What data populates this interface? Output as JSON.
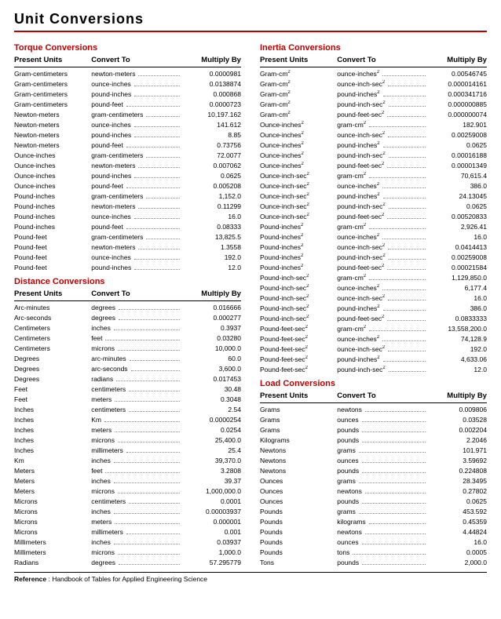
{
  "title": "Unit  Conversions",
  "reference_label": "Reference",
  "reference_text": " : Handbook of Tables for Applied Engineering Science",
  "headers": {
    "c1": "Present Units",
    "c2": "Convert To",
    "c3": "Multiply By"
  },
  "colors": {
    "accent": "#c00000",
    "text": "#000000",
    "bg": "#ffffff"
  },
  "left": [
    {
      "title": "Torque Conversions",
      "rows": [
        [
          "Gram-centimeters",
          "newton-meters",
          "0.0000981"
        ],
        [
          "Gram-centimeters",
          "ounce-inches",
          "0.0138874"
        ],
        [
          "Gram-centimeters",
          "pound-inches",
          "0.000868"
        ],
        [
          "Gram-centimeters",
          "pound-feet",
          "0.0000723"
        ],
        [
          "Newton-meters",
          "gram-centimeters",
          "10,197.162"
        ],
        [
          "Newton-meters",
          "ounce-inches",
          "141.612"
        ],
        [
          "Newton-meters",
          "pound-inches",
          "8.85"
        ],
        [
          "Newton-meters",
          "pound-feet",
          "0.73756"
        ],
        [
          "Ounce-inches",
          "gram-centimeters",
          "72.0077"
        ],
        [
          "Ounce-inches",
          "newton-meters",
          "0.007062"
        ],
        [
          "Ounce-inches",
          "pound-inches",
          "0.0625"
        ],
        [
          "Ounce-inches",
          "pound-feet",
          "0.005208"
        ],
        [
          "Pound-inches",
          "gram-centimeters",
          "1,152.0"
        ],
        [
          "Pound-inches",
          "newton-meters",
          "0.11299"
        ],
        [
          "Pound-inches",
          "ounce-inches",
          "16.0"
        ],
        [
          "Pound-inches",
          "pound-feet",
          "0.08333"
        ],
        [
          "Pound-feet",
          "gram-centimeters",
          "13,825.5"
        ],
        [
          "Pound-feet",
          "newton-meters",
          "1.3558"
        ],
        [
          "Pound-feet",
          "ounce-inches",
          "192.0"
        ],
        [
          "Pound-feet",
          "pound-inches",
          "12.0"
        ]
      ]
    },
    {
      "title": "Distance Conversions",
      "rows": [
        [
          "Arc-minutes",
          "degrees",
          "0.016666"
        ],
        [
          "Arc-seconds",
          "degrees",
          "0.000277"
        ],
        [
          "Centimeters",
          "inches",
          "0.3937"
        ],
        [
          "Centimeters",
          "feet",
          "0.03280"
        ],
        [
          "Centimeters",
          "microns",
          "10,000.0"
        ],
        [
          "Degrees",
          "arc-minutes",
          "60.0"
        ],
        [
          "Degrees",
          "arc-seconds",
          "3,600.0"
        ],
        [
          "Degrees",
          "radians",
          "0.017453"
        ],
        [
          "Feet",
          "centimeters",
          "30.48"
        ],
        [
          "Feet",
          "meters",
          "0.3048"
        ],
        [
          "Inches",
          "centimeters",
          "2.54"
        ],
        [
          "Inches",
          "Km",
          "0.0000254"
        ],
        [
          "Inches",
          "meters",
          "0.0254"
        ],
        [
          "Inches",
          "microns",
          "25,400.0"
        ],
        [
          "Inches",
          "millimeters",
          "25.4"
        ],
        [
          "Km",
          "inches",
          "39,370.0"
        ],
        [
          "Meters",
          "feet",
          "3.2808"
        ],
        [
          "Meters",
          "inches",
          "39.37"
        ],
        [
          "Meters",
          "microns",
          "1,000,000.0"
        ],
        [
          "Microns",
          "centimeters",
          "0.0001"
        ],
        [
          "Microns",
          "inches",
          "0.00003937"
        ],
        [
          "Microns",
          "meters",
          "0.000001"
        ],
        [
          "Microns",
          "millimeters",
          "0.001"
        ],
        [
          "Millimeters",
          "inches",
          "0.03937"
        ],
        [
          "Millimeters",
          "microns",
          "1,000.0"
        ],
        [
          "Radians",
          "degrees",
          "57.295779"
        ]
      ]
    }
  ],
  "right": [
    {
      "title": "Inertia  Conversions",
      "rows": [
        [
          "Gram-cm²",
          "ounce-inches²",
          "0.00546745"
        ],
        [
          "Gram-cm²",
          "ounce-inch-sec²",
          "0.000014161"
        ],
        [
          "Gram-cm²",
          "pound-inches²",
          "0.000341716"
        ],
        [
          "Gram-cm²",
          "pound-inch-sec²",
          "0.000000885"
        ],
        [
          "Gram-cm²",
          "pound-feet-sec²",
          "0.000000074"
        ],
        [
          "Ounce-inches²",
          "gram-cm²",
          "182.901"
        ],
        [
          "Ounce-inches²",
          "ounce-inch-sec²",
          "0.00259008"
        ],
        [
          "Ounce-inches²",
          "pound-inches²",
          "0.0625"
        ],
        [
          "Ounce-inches²",
          "pound-inch-sec²",
          "0.00016188"
        ],
        [
          "Ounce-inches²",
          "pound-feet-sec²",
          "0.00001349"
        ],
        [
          "Ounce-inch-sec²",
          "gram-cm²",
          "70,615.4"
        ],
        [
          "Ounce-inch-sec²",
          "ounce-inches²",
          "386.0"
        ],
        [
          "Ounce-inch-sec²",
          "pound-inches²",
          "24.13045"
        ],
        [
          "Ounce-inch-sec²",
          "pound-inch-sec²",
          "0.0625"
        ],
        [
          "Ounce-inch-sec²",
          "pound-feet-sec²",
          "0.00520833"
        ],
        [
          "Pound-inches²",
          "gram-cm²",
          "2,926.41"
        ],
        [
          "Pound-inches²",
          "ounce-inches²",
          "16.0"
        ],
        [
          "Pound-inches²",
          "ounce-inch-sec²",
          "0.0414413"
        ],
        [
          "Pound-inches²",
          "pound-inch-sec²",
          "0.00259008"
        ],
        [
          "Pound-inches²",
          "pound-feet-sec²",
          "0.00021584"
        ],
        [
          "Pound-inch-sec²",
          "gram-cm²",
          "1,129,850.0"
        ],
        [
          "Pound-inch-sec²",
          "ounce-inches²",
          "6,177.4"
        ],
        [
          "Pound-inch-sec²",
          "ounce-inch-sec²",
          "16.0"
        ],
        [
          "Pound-inch-sec²",
          "pound-inches²",
          "386.0"
        ],
        [
          "Pound-inch-sec²",
          "pound-feet-sec²",
          "0.0833333"
        ],
        [
          "Pound-feet-sec²",
          "gram-cm²",
          "13,558,200.0"
        ],
        [
          "Pound-feet-sec²",
          "ounce-inches²",
          "74,128.9"
        ],
        [
          "Pound-feet-sec²",
          "ounce-inch-sec²",
          "192.0"
        ],
        [
          "Pound-feet-sec²",
          "pound-inches²",
          "4,633.06"
        ],
        [
          "Pound-feet-sec²",
          "pound-inch-sec²",
          "12.0"
        ]
      ]
    },
    {
      "title": "Load Conversions",
      "rows": [
        [
          "Grams",
          "newtons",
          "0.009806"
        ],
        [
          "Grams",
          "ounces",
          "0.03528"
        ],
        [
          "Grams",
          "pounds",
          "0.002204"
        ],
        [
          "Kilograms",
          "pounds",
          "2.2046"
        ],
        [
          "Newtons",
          "grams",
          "101.971"
        ],
        [
          "Newtons",
          "ounces",
          "3.59692"
        ],
        [
          "Newtons",
          "pounds",
          "0.224808"
        ],
        [
          "Ounces",
          "grams",
          "28.3495"
        ],
        [
          "Ounces",
          "newtons",
          "0.27802"
        ],
        [
          "Ounces",
          "pounds",
          "0.0625"
        ],
        [
          "Pounds",
          "grams",
          "453.592"
        ],
        [
          "Pounds",
          "kilograms",
          "0.45359"
        ],
        [
          "Pounds",
          "newtons",
          "4.44824"
        ],
        [
          "Pounds",
          "ounces",
          "16.0"
        ],
        [
          "Pounds",
          "tons",
          "0.0005"
        ],
        [
          "Tons",
          "pounds",
          "2,000.0"
        ]
      ]
    }
  ]
}
